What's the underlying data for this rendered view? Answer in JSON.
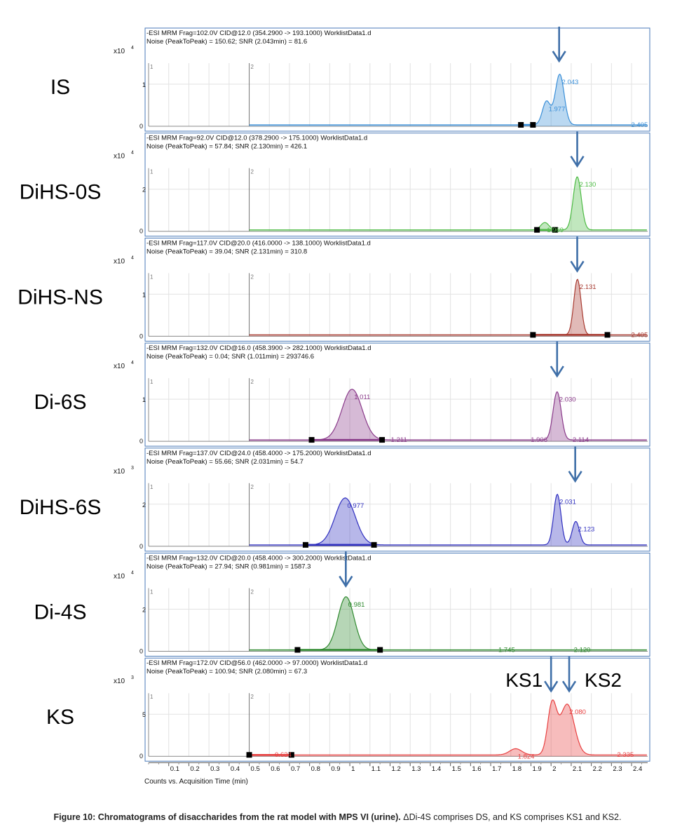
{
  "caption": {
    "bold": "Figure 10: Chromatograms of disaccharides from the rat model with MPS VI (urine).",
    "rest": " ΔDi-4S comprises DS, and KS comprises KS1 and KS2."
  },
  "x_axis": {
    "label": "Counts vs. Acquisition Time (min)",
    "tick_labels": [
      "0.1",
      "0.2",
      "0.3",
      "0.4",
      "0.5",
      "0.6",
      "0.7",
      "0.8",
      "0.9",
      "1",
      "1.1",
      "1.2",
      "1.3",
      "1.4",
      "1.5",
      "1.6",
      "1.7",
      "1.8",
      "1.9",
      "2",
      "2.1",
      "2.2",
      "2.3",
      "2.4"
    ]
  },
  "chart_data": [
    {
      "type": "line",
      "compound": "IS",
      "header1": "-ESI MRM Frag=102.0V CID@12.0 (354.2900 -> 193.1000) WorklistData1.d",
      "header2": "Noise (PeakToPeak) = 150.62; SNR (2.043min) = 81.6",
      "y_exponent": "x10 4",
      "y_ticks": [
        "1",
        "0"
      ],
      "color": "#3a8fd8",
      "peaks": [
        {
          "rt": 2.043,
          "label": "2.043",
          "rel_height": 0.82,
          "width": 0.022
        },
        {
          "rt": 1.977,
          "label": "1.977",
          "rel_height": 0.38,
          "width": 0.02
        }
      ],
      "other_labels": [
        {
          "x": 2.405,
          "text": "2.405"
        }
      ],
      "integration_markers": [
        1.85,
        1.91
      ],
      "arrows": [
        2.04
      ],
      "xlim": [
        0.0,
        2.48
      ]
    },
    {
      "type": "line",
      "compound": "DiHS-0S",
      "header1": "-ESI MRM Frag=92.0V CID@12.0 (378.2900 -> 175.1000) WorklistData1.d",
      "header2": "Noise (PeakToPeak) = 57.84; SNR (2.130min) = 426.1",
      "y_exponent": "x10 4",
      "y_ticks": [
        "2",
        "0"
      ],
      "color": "#4dbb44",
      "peaks": [
        {
          "rt": 2.13,
          "label": "2.130",
          "rel_height": 0.86,
          "width": 0.02
        },
        {
          "rt": 1.969,
          "label": "1.969",
          "rel_height": 0.12,
          "width": 0.02
        }
      ],
      "other_labels": [],
      "integration_markers": [
        1.93,
        2.02
      ],
      "arrows": [
        2.13
      ],
      "xlim": [
        0.0,
        2.48
      ]
    },
    {
      "type": "line",
      "compound": "DiHS-NS",
      "header1": "-ESI MRM Frag=117.0V CID@20.0 (416.0000 -> 138.1000) WorklistData1.d",
      "header2": "Noise (PeakToPeak) = 39.04; SNR (2.131min) = 310.8",
      "y_exponent": "x10 4",
      "y_ticks": [
        "1",
        "0"
      ],
      "color": "#a83a30",
      "peaks": [
        {
          "rt": 2.131,
          "label": "2.131",
          "rel_height": 0.9,
          "width": 0.018
        }
      ],
      "other_labels": [
        {
          "x": 2.405,
          "text": "2.405"
        }
      ],
      "integration_markers": [
        1.91,
        2.28
      ],
      "arrows": [
        2.13
      ],
      "xlim": [
        0.0,
        2.48
      ]
    },
    {
      "type": "line",
      "compound": "Di-6S",
      "header1": "-ESI MRM Frag=132.0V CID@16.0 (458.3900 -> 282.1000) WorklistData1.d",
      "header2": "Noise (PeakToPeak) = 0.04; SNR (1.011min) = 293746.6",
      "y_exponent": "x10 4",
      "y_ticks": [
        "1",
        "0"
      ],
      "color": "#8a3a8a",
      "peaks": [
        {
          "rt": 1.011,
          "label": "1.011",
          "rel_height": 0.82,
          "width": 0.05
        },
        {
          "rt": 2.03,
          "label": "2.030",
          "rel_height": 0.78,
          "width": 0.02
        }
      ],
      "other_labels": [
        {
          "x": 1.211,
          "text": "1.211"
        },
        {
          "x": 1.906,
          "text": "1.906"
        },
        {
          "x": 2.114,
          "text": "2.114"
        }
      ],
      "integration_markers": [
        0.81,
        1.16
      ],
      "arrows": [
        2.03
      ],
      "xlim": [
        0.0,
        2.48
      ]
    },
    {
      "type": "line",
      "compound": "DiHS-6S",
      "header1": "-ESI MRM Frag=137.0V CID@24.0 (458.4000 -> 175.2000) WorklistData1.d",
      "header2": "Noise (PeakToPeak) = 55.66; SNR (2.031min) = 54.7",
      "y_exponent": "x10 3",
      "y_ticks": [
        "2",
        "0"
      ],
      "color": "#3030c0",
      "peaks": [
        {
          "rt": 0.977,
          "label": "0.977",
          "rel_height": 0.76,
          "width": 0.05
        },
        {
          "rt": 2.031,
          "label": "2.031",
          "rel_height": 0.82,
          "width": 0.018
        },
        {
          "rt": 2.123,
          "label": "2.123",
          "rel_height": 0.38,
          "width": 0.018
        }
      ],
      "other_labels": [],
      "integration_markers": [
        0.78,
        1.12
      ],
      "arrows": [
        2.12
      ],
      "xlim": [
        0.0,
        2.48
      ]
    },
    {
      "type": "line",
      "compound": "Di-4S",
      "header1": "-ESI MRM Frag=132.0V CID@20.0 (458.4000 -> 300.2000) WorklistData1.d",
      "header2": "Noise (PeakToPeak) = 27.94; SNR (0.981min) = 1587.3",
      "y_exponent": "x10 4",
      "y_ticks": [
        "2",
        "0"
      ],
      "color": "#2f8a2f",
      "peaks": [
        {
          "rt": 0.981,
          "label": "0.981",
          "rel_height": 0.86,
          "width": 0.04
        }
      ],
      "other_labels": [
        {
          "x": 1.745,
          "text": "1.745"
        },
        {
          "x": 2.12,
          "text": "2.120"
        }
      ],
      "integration_markers": [
        0.74,
        1.15
      ],
      "arrows": [
        0.98
      ],
      "xlim": [
        0.0,
        2.48
      ]
    },
    {
      "type": "line",
      "compound": "KS",
      "header1": "-ESI MRM Frag=172.0V CID@56.0 (462.0000 -> 97.0000) WorklistData1.d",
      "header2": "Noise (PeakToPeak) = 100.94; SNR (2.080min) = 67.3",
      "y_exponent": "x10 3",
      "y_ticks": [
        "5",
        "0"
      ],
      "color": "#e84040",
      "peaks": [
        {
          "rt": 2.005,
          "label": "",
          "rel_height": 0.8,
          "width": 0.022
        },
        {
          "rt": 2.08,
          "label": "2.080",
          "rel_height": 0.82,
          "width": 0.035
        },
        {
          "rt": 1.824,
          "label": "1.824",
          "rel_height": 0.1,
          "width": 0.03
        }
      ],
      "other_labels": [
        {
          "x": 0.634,
          "text": "0.634"
        },
        {
          "x": 2.335,
          "text": "2.335"
        }
      ],
      "integration_markers": [
        0.5,
        0.71
      ],
      "arrows": [
        2.0,
        2.09
      ],
      "arrow_labels": [
        "KS1",
        "KS2"
      ],
      "xlim": [
        0.0,
        2.48
      ]
    }
  ]
}
